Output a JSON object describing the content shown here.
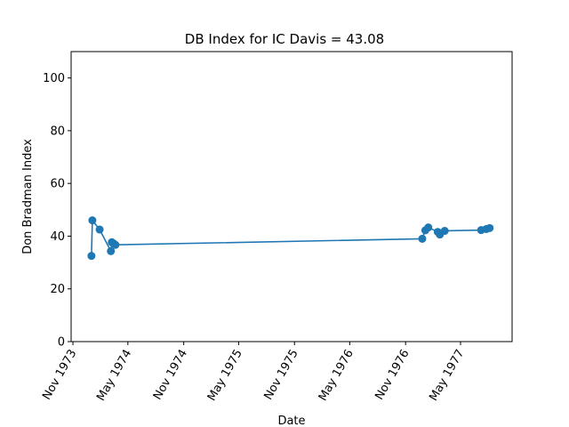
{
  "chart_data": {
    "type": "line",
    "title": "DB Index for IC Davis = 43.08",
    "xlabel": "Date",
    "ylabel": "Don Bradman Index",
    "ylim": [
      0,
      110
    ],
    "yticks": [
      0,
      20,
      40,
      60,
      80,
      100
    ],
    "xlim": [
      "1973-10-26",
      "1977-10-18"
    ],
    "xticks": [
      {
        "date": "1973-11-01",
        "label": "Nov 1973"
      },
      {
        "date": "1974-05-01",
        "label": "May 1974"
      },
      {
        "date": "1974-11-01",
        "label": "Nov 1974"
      },
      {
        "date": "1975-05-01",
        "label": "May 1975"
      },
      {
        "date": "1975-11-01",
        "label": "Nov 1975"
      },
      {
        "date": "1976-05-01",
        "label": "May 1976"
      },
      {
        "date": "1976-11-01",
        "label": "Nov 1976"
      },
      {
        "date": "1977-05-01",
        "label": "May 1977"
      }
    ],
    "grid": false,
    "color": "#1f77b4",
    "series": [
      {
        "name": "",
        "points": [
          {
            "x": "1974-01-01",
            "y": 32.5
          },
          {
            "x": "1974-01-04",
            "y": 46.0
          },
          {
            "x": "1974-01-28",
            "y": 42.5
          },
          {
            "x": "1974-03-06",
            "y": 34.3
          },
          {
            "x": "1974-03-09",
            "y": 37.7
          },
          {
            "x": "1974-03-14",
            "y": 37.3
          },
          {
            "x": "1974-03-21",
            "y": 36.7
          },
          {
            "x": "1976-12-26",
            "y": 39.0
          },
          {
            "x": "1977-01-05",
            "y": 42.2
          },
          {
            "x": "1977-01-15",
            "y": 43.3
          },
          {
            "x": "1977-02-15",
            "y": 41.6
          },
          {
            "x": "1977-02-22",
            "y": 40.6
          },
          {
            "x": "1977-03-10",
            "y": 42.0
          },
          {
            "x": "1977-07-08",
            "y": 42.3
          },
          {
            "x": "1977-07-25",
            "y": 42.7
          },
          {
            "x": "1977-08-05",
            "y": 43.08
          }
        ]
      }
    ]
  }
}
